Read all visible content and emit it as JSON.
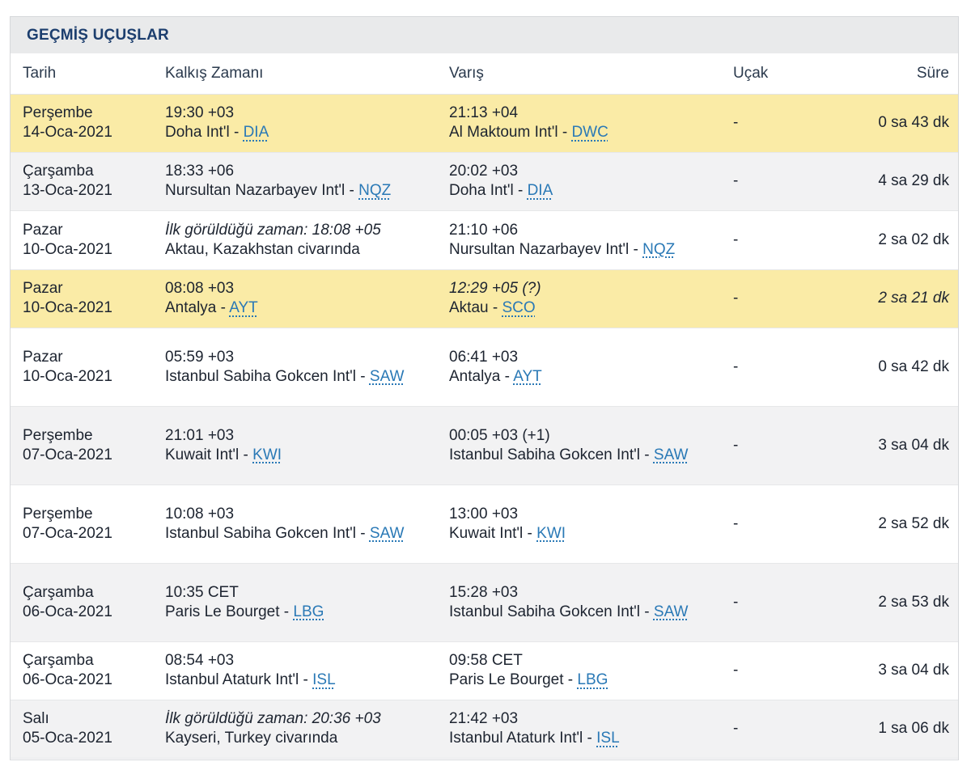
{
  "panel": {
    "title": "GEÇMİŞ UÇUŞLAR"
  },
  "columns": {
    "date": "Tarih",
    "departure": "Kalkış Zamanı",
    "arrival": "Varış",
    "aircraft": "Uçak",
    "duration": "Süre"
  },
  "colors": {
    "highlight": "#faeba6",
    "alt_row": "#f2f2f3",
    "link": "#2a79b6",
    "title": "#1c3e6e"
  },
  "rows": [
    {
      "highlight": "yellow",
      "day": "Perşembe",
      "date": "14-Oca-2021",
      "dep_time": "19:30 +03",
      "dep_time_italic": false,
      "dep_place": "Doha Int'l",
      "dep_code": "DIA",
      "arr_time": "21:13 +04",
      "arr_time_italic": false,
      "arr_place": "Al Maktoum Int'l",
      "arr_code": "DWC",
      "aircraft": "-",
      "duration": "0 sa 43 dk",
      "duration_italic": false,
      "height": 72
    },
    {
      "highlight": "gray",
      "day": "Çarşamba",
      "date": "13-Oca-2021",
      "dep_time": "18:33 +06",
      "dep_time_italic": false,
      "dep_place": "Nursultan Nazarbayev Int'l",
      "dep_code": "NQZ",
      "arr_time": "20:02 +03",
      "arr_time_italic": false,
      "arr_place": "Doha Int'l",
      "arr_code": "DIA",
      "aircraft": "-",
      "duration": "4 sa 29 dk",
      "duration_italic": false,
      "height": 72
    },
    {
      "highlight": "white",
      "day": "Pazar",
      "date": "10-Oca-2021",
      "dep_time": "İlk görüldüğü zaman: 18:08 +05",
      "dep_time_italic": true,
      "dep_place": "Aktau, Kazakhstan civarında",
      "dep_code": "",
      "arr_time": "21:10 +06",
      "arr_time_italic": false,
      "arr_place": "Nursultan Nazarbayev Int'l",
      "arr_code": "NQZ",
      "aircraft": "-",
      "duration": "2 sa 02 dk",
      "duration_italic": false,
      "height": 73
    },
    {
      "highlight": "yellow",
      "day": "Pazar",
      "date": "10-Oca-2021",
      "dep_time": "08:08 +03",
      "dep_time_italic": false,
      "dep_place": "Antalya",
      "dep_code": "AYT",
      "arr_time": "12:29 +05 (?)",
      "arr_time_italic": true,
      "arr_place": "Aktau",
      "arr_code": "SCO",
      "aircraft": "-",
      "duration": "2 sa 21 dk",
      "duration_italic": true,
      "height": 72
    },
    {
      "highlight": "white",
      "day": "Pazar",
      "date": "10-Oca-2021",
      "dep_time": "05:59 +03",
      "dep_time_italic": false,
      "dep_place": "Istanbul Sabiha Gokcen Int'l",
      "dep_code": "SAW",
      "arr_time": "06:41 +03",
      "arr_time_italic": false,
      "arr_place": "Antalya",
      "arr_code": "AYT",
      "aircraft": "-",
      "duration": "0 sa 42 dk",
      "duration_italic": false,
      "height": 97
    },
    {
      "highlight": "gray",
      "day": "Perşembe",
      "date": "07-Oca-2021",
      "dep_time": "21:01 +03",
      "dep_time_italic": false,
      "dep_place": "Kuwait Int'l",
      "dep_code": "KWI",
      "arr_time": "00:05 +03 (+1)",
      "arr_time_italic": false,
      "arr_place": "Istanbul Sabiha Gokcen Int'l",
      "arr_code": "SAW",
      "aircraft": "-",
      "duration": "3 sa 04 dk",
      "duration_italic": false,
      "height": 97
    },
    {
      "highlight": "white",
      "day": "Perşembe",
      "date": "07-Oca-2021",
      "dep_time": "10:08 +03",
      "dep_time_italic": false,
      "dep_place": "Istanbul Sabiha Gokcen Int'l",
      "dep_code": "SAW",
      "arr_time": "13:00 +03",
      "arr_time_italic": false,
      "arr_place": "Kuwait Int'l",
      "arr_code": "KWI",
      "aircraft": "-",
      "duration": "2 sa 52 dk",
      "duration_italic": false,
      "height": 97
    },
    {
      "highlight": "gray",
      "day": "Çarşamba",
      "date": "06-Oca-2021",
      "dep_time": "10:35 CET",
      "dep_time_italic": false,
      "dep_place": "Paris Le Bourget",
      "dep_code": "LBG",
      "arr_time": "15:28 +03",
      "arr_time_italic": false,
      "arr_place": "Istanbul Sabiha Gokcen Int'l",
      "arr_code": "SAW",
      "aircraft": "-",
      "duration": "2 sa 53 dk",
      "duration_italic": false,
      "height": 97
    },
    {
      "highlight": "white",
      "day": "Çarşamba",
      "date": "06-Oca-2021",
      "dep_time": "08:54 +03",
      "dep_time_italic": false,
      "dep_place": "Istanbul Ataturk Int'l",
      "dep_code": "ISL",
      "arr_time": "09:58 CET",
      "arr_time_italic": false,
      "arr_place": "Paris Le Bourget",
      "arr_code": "LBG",
      "aircraft": "-",
      "duration": "3 sa 04 dk",
      "duration_italic": false,
      "height": 72
    },
    {
      "highlight": "gray",
      "day": "Salı",
      "date": "05-Oca-2021",
      "dep_time": "İlk görüldüğü zaman: 20:36 +03",
      "dep_time_italic": true,
      "dep_place": "Kayseri, Turkey civarında",
      "dep_code": "",
      "arr_time": "21:42 +03",
      "arr_time_italic": false,
      "arr_place": "Istanbul Ataturk Int'l",
      "arr_code": "ISL",
      "aircraft": "-",
      "duration": "1 sa 06 dk",
      "duration_italic": false,
      "height": 72
    }
  ]
}
